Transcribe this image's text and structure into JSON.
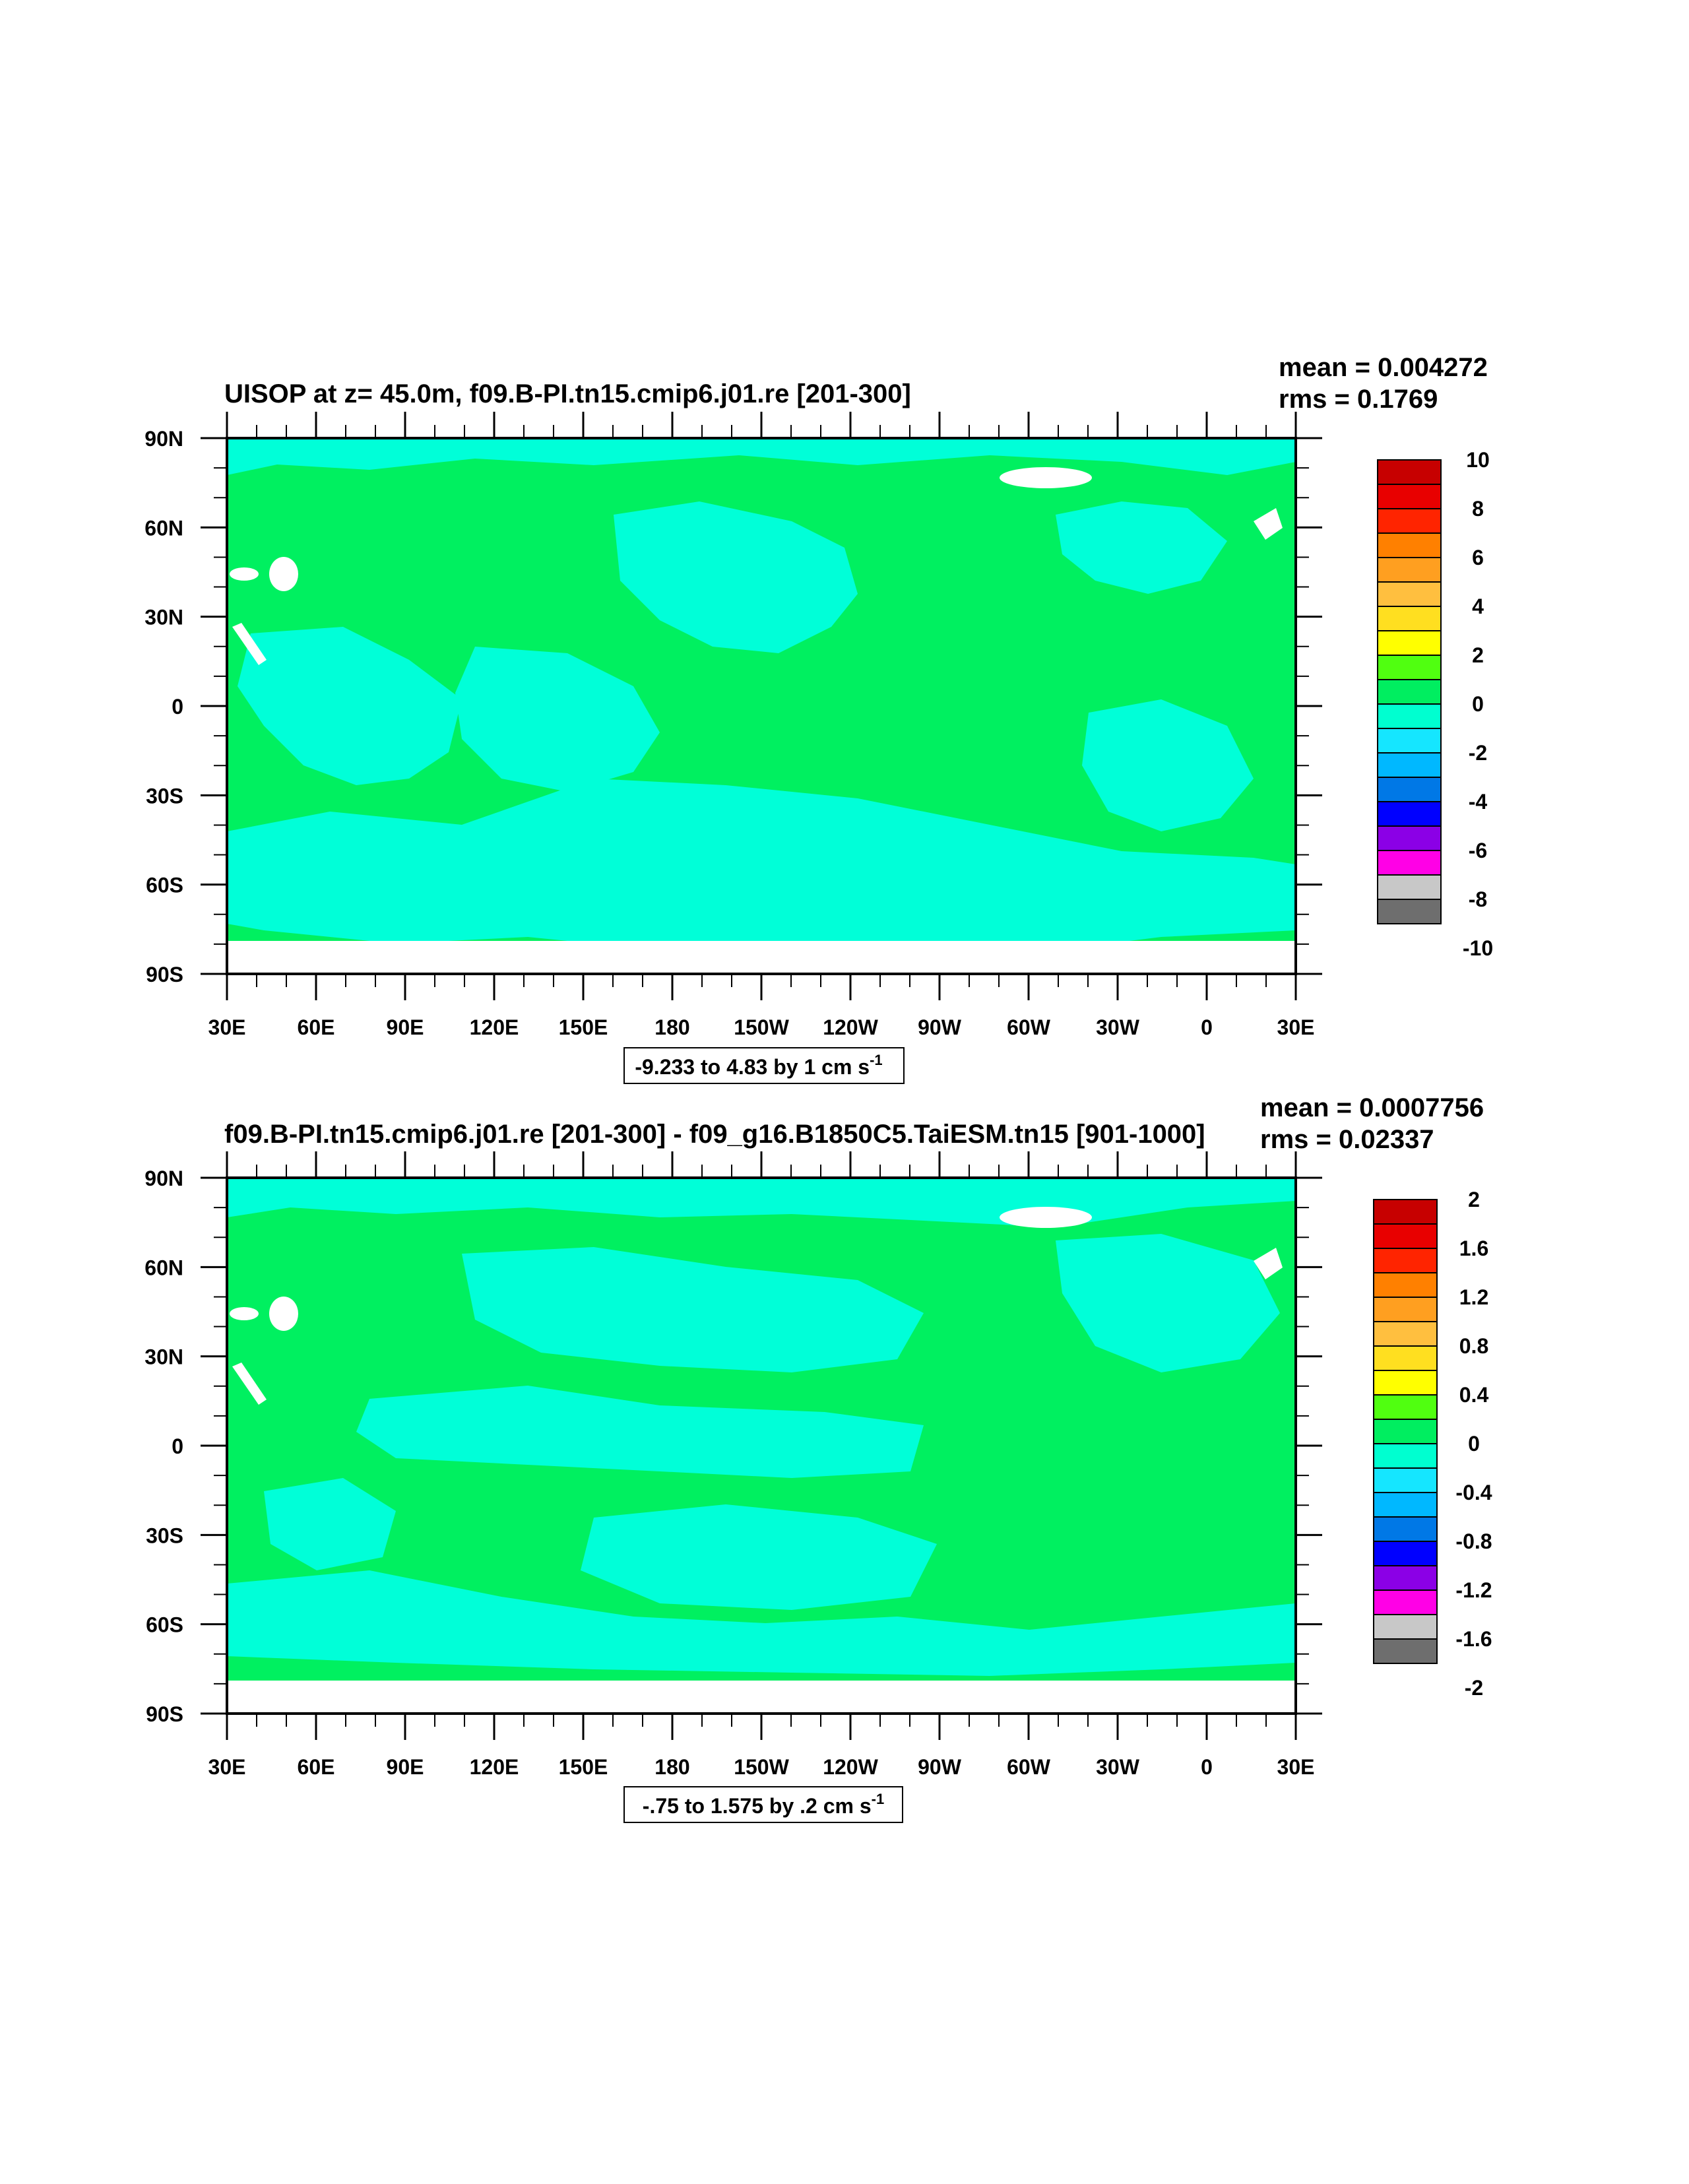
{
  "panels": [
    {
      "title": "UISOP at z=  45.0m, f09.B-PI.tn15.cmip6.j01.re [201-300]",
      "mean_text": "mean = 0.004272",
      "rms_text": "rms = 0.1769",
      "range_text": "-9.233 to 4.83 by 1 cm s",
      "range_sup": "-1",
      "colorbar": {
        "labels": [
          "10",
          "8",
          "6",
          "4",
          "2",
          "0",
          "-2",
          "-4",
          "-6",
          "-8",
          "-10"
        ],
        "colors": [
          "#c70000",
          "#e80000",
          "#ff2400",
          "#ff8000",
          "#ff9f20",
          "#ffbf3f",
          "#ffdf20",
          "#ffff00",
          "#50ff10",
          "#00ee60",
          "#00ffd0",
          "#15e6ff",
          "#00b8ff",
          "#0078e6",
          "#0000ff",
          "#8b00e6",
          "#ff00e6",
          "#c8c8c8",
          "#6e6e6e"
        ]
      }
    },
    {
      "title": "f09.B-PI.tn15.cmip6.j01.re [201-300] - f09_g16.B1850C5.TaiESM.tn15 [901-1000]",
      "mean_text": "mean = 0.0007756",
      "rms_text": "rms = 0.02337",
      "range_text": "-.75 to 1.575 by .2 cm s",
      "range_sup": "-1",
      "colorbar": {
        "labels": [
          "2",
          "1.6",
          "1.2",
          "0.8",
          "0.4",
          "0",
          "-0.4",
          "-0.8",
          "-1.2",
          "-1.6",
          "-2"
        ],
        "colors": [
          "#c70000",
          "#e80000",
          "#ff2400",
          "#ff8000",
          "#ff9f20",
          "#ffbf3f",
          "#ffdf20",
          "#ffff00",
          "#50ff10",
          "#00ee60",
          "#00ffd0",
          "#15e6ff",
          "#00b8ff",
          "#0078e6",
          "#0000ff",
          "#8b00e6",
          "#ff00e6",
          "#c8c8c8",
          "#6e6e6e"
        ]
      }
    }
  ],
  "axes": {
    "lat_labels": [
      "90N",
      "60N",
      "30N",
      "0",
      "30S",
      "60S",
      "90S"
    ],
    "lon_labels": [
      "30E",
      "60E",
      "90E",
      "120E",
      "150E",
      "180",
      "150W",
      "120W",
      "90W",
      "60W",
      "30W",
      "0",
      "30E"
    ]
  },
  "map_colors": {
    "positive": "#00f060",
    "negative": "#00ffd8",
    "missing": "#ffffff"
  }
}
